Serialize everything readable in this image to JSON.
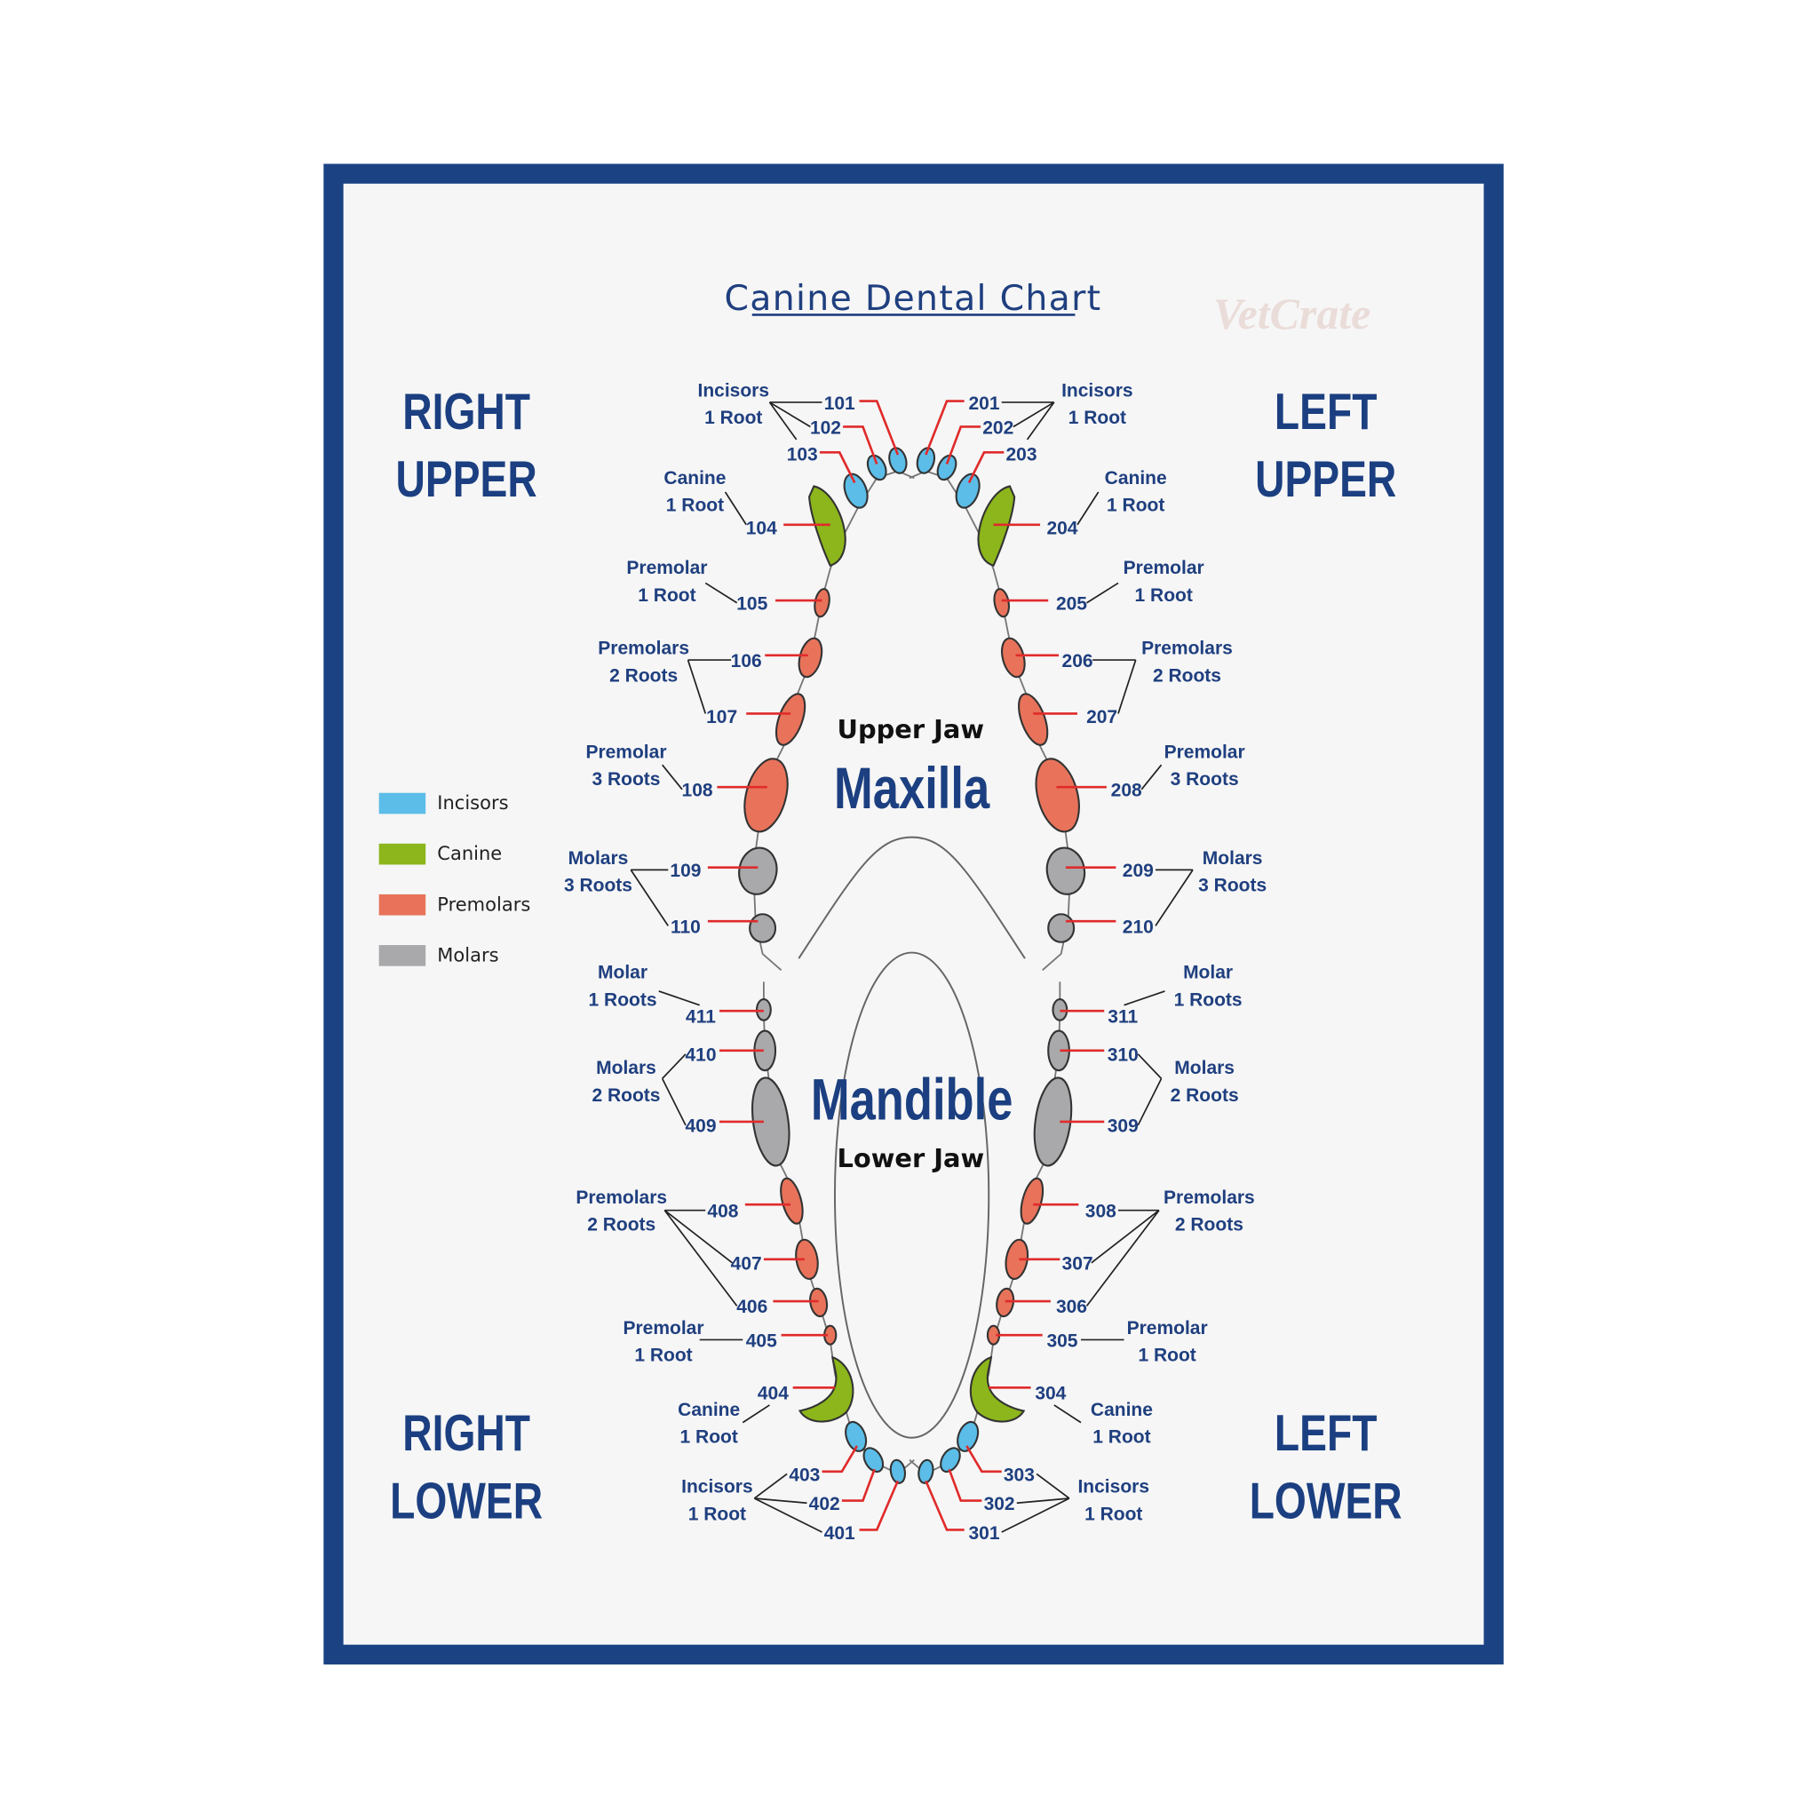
{
  "title": "Canine Dental Chart",
  "watermark": "VetCrate",
  "quadrants": {
    "right_upper": [
      "RIGHT",
      "UPPER"
    ],
    "left_upper": [
      "LEFT",
      "UPPER"
    ],
    "right_lower": [
      "RIGHT",
      "LOWER"
    ],
    "left_lower": [
      "LEFT",
      "LOWER"
    ]
  },
  "jaws": {
    "upper_small": "Upper Jaw",
    "upper_big": "Maxilla",
    "lower_big": "Mandible",
    "lower_small": "Lower Jaw"
  },
  "colors": {
    "frame": "#1b4384",
    "text": "#1f3f7f",
    "leader": "#e02b2b",
    "incisors": "#5bbde8",
    "canine": "#8cb61b",
    "premolars": "#e8735a",
    "molars": "#a9a9ab"
  },
  "legend": [
    {
      "label": "Incisors",
      "type": "incisors"
    },
    {
      "label": "Canine",
      "type": "canine"
    },
    {
      "label": "Premolars",
      "type": "premolars"
    },
    {
      "label": "Molars",
      "type": "molars"
    }
  ],
  "teeth": [
    {
      "number": "101",
      "type": "incisors"
    },
    {
      "number": "102",
      "type": "incisors"
    },
    {
      "number": "103",
      "type": "incisors"
    },
    {
      "number": "104",
      "type": "canine"
    },
    {
      "number": "105",
      "type": "premolars"
    },
    {
      "number": "106",
      "type": "premolars"
    },
    {
      "number": "107",
      "type": "premolars"
    },
    {
      "number": "108",
      "type": "premolars"
    },
    {
      "number": "109",
      "type": "molars"
    },
    {
      "number": "110",
      "type": "molars"
    },
    {
      "number": "201",
      "type": "incisors"
    },
    {
      "number": "202",
      "type": "incisors"
    },
    {
      "number": "203",
      "type": "incisors"
    },
    {
      "number": "204",
      "type": "canine"
    },
    {
      "number": "205",
      "type": "premolars"
    },
    {
      "number": "206",
      "type": "premolars"
    },
    {
      "number": "207",
      "type": "premolars"
    },
    {
      "number": "208",
      "type": "premolars"
    },
    {
      "number": "209",
      "type": "molars"
    },
    {
      "number": "210",
      "type": "molars"
    },
    {
      "number": "301",
      "type": "incisors"
    },
    {
      "number": "302",
      "type": "incisors"
    },
    {
      "number": "303",
      "type": "incisors"
    },
    {
      "number": "304",
      "type": "canine"
    },
    {
      "number": "305",
      "type": "premolars"
    },
    {
      "number": "306",
      "type": "premolars"
    },
    {
      "number": "307",
      "type": "premolars"
    },
    {
      "number": "308",
      "type": "premolars"
    },
    {
      "number": "309",
      "type": "molars"
    },
    {
      "number": "310",
      "type": "molars"
    },
    {
      "number": "311",
      "type": "molars"
    },
    {
      "number": "401",
      "type": "incisors"
    },
    {
      "number": "402",
      "type": "incisors"
    },
    {
      "number": "403",
      "type": "incisors"
    },
    {
      "number": "404",
      "type": "canine"
    },
    {
      "number": "405",
      "type": "premolars"
    },
    {
      "number": "406",
      "type": "premolars"
    },
    {
      "number": "407",
      "type": "premolars"
    },
    {
      "number": "408",
      "type": "premolars"
    },
    {
      "number": "409",
      "type": "molars"
    },
    {
      "number": "410",
      "type": "molars"
    },
    {
      "number": "411",
      "type": "molars"
    }
  ],
  "groups": {
    "upper_right": [
      [
        "Incisors",
        "1 Root"
      ],
      [
        "Canine",
        "1 Root"
      ],
      [
        "Premolar",
        "1 Root"
      ],
      [
        "Premolars",
        "2 Roots"
      ],
      [
        "Premolar",
        "3 Roots"
      ],
      [
        "Molars",
        "3 Roots"
      ]
    ],
    "upper_left": [
      [
        "Incisors",
        "1 Root"
      ],
      [
        "Canine",
        "1 Root"
      ],
      [
        "Premolar",
        "1 Root"
      ],
      [
        "Premolars",
        "2 Roots"
      ],
      [
        "Premolar",
        "3 Roots"
      ],
      [
        "Molars",
        "3 Roots"
      ]
    ],
    "lower_right": [
      [
        "Molar",
        "1 Roots"
      ],
      [
        "Molars",
        "2 Roots"
      ],
      [
        "Premolars",
        "2 Roots"
      ],
      [
        "Premolar",
        "1 Root"
      ],
      [
        "Canine",
        "1 Root"
      ],
      [
        "Incisors",
        "1 Root"
      ]
    ],
    "lower_left": [
      [
        "Molar",
        "1 Roots"
      ],
      [
        "Molars",
        "2 Roots"
      ],
      [
        "Premolars",
        "2 Roots"
      ],
      [
        "Premolar",
        "1 Root"
      ],
      [
        "Canine",
        "1 Root"
      ],
      [
        "Incisors",
        "1 Root"
      ]
    ]
  }
}
